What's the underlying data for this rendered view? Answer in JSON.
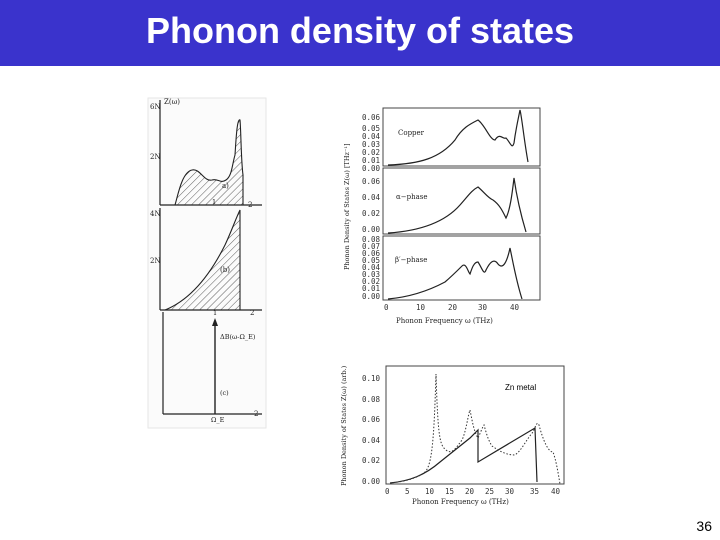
{
  "slide": {
    "title": "Phonon density of states",
    "page_number": "36"
  },
  "left_figure": {
    "panel_a": {
      "y_axis_label": "Z(ω)",
      "y_tick_top": "6N",
      "y_tick_mid": "2N",
      "panel_label": "a)",
      "x_tick_1": "1",
      "x_tick_2": "2"
    },
    "panel_b": {
      "y_tick_top": "4N",
      "y_tick_mid": "2N",
      "panel_label": "(b)",
      "x_tick_1": "1",
      "x_tick_2": "2"
    },
    "panel_c": {
      "label_top": "ΔB(ω-Ω_E)",
      "panel_label": "(c)",
      "x_tick_e": "Ω_E",
      "x_tick_2": "2"
    }
  },
  "right_top_figure": {
    "y_axis_label": "Phonon Density of States Z(ω) [THz⁻¹]",
    "x_axis_label": "Phonon Frequency ω (THz)",
    "x_ticks": [
      "0",
      "10",
      "20",
      "30",
      "40"
    ],
    "panels": [
      {
        "name": "Copper",
        "y_ticks": [
          "0.06",
          "0.05",
          "0.04",
          "0.03",
          "0.02",
          "0.01",
          "0.00"
        ]
      },
      {
        "name": "α−phase",
        "y_ticks": [
          "0.06",
          "0.04",
          "0.02",
          "0.00"
        ]
      },
      {
        "name": "β′−phase",
        "y_ticks": [
          "0.08",
          "0.07",
          "0.06",
          "0.05",
          "0.04",
          "0.03",
          "0.02",
          "0.01",
          "0.00"
        ]
      }
    ]
  },
  "right_bottom_figure": {
    "annotation": "Zn metal",
    "y_axis_label": "Phonon Density of States Z(ω) (arb.)",
    "x_axis_label": "Phonon Frequency ω (THz)",
    "y_ticks": [
      "0.10",
      "0.08",
      "0.06",
      "0.04",
      "0.02",
      "0.00"
    ],
    "x_ticks": [
      "0",
      "5",
      "10",
      "15",
      "20",
      "25",
      "30",
      "35",
      "40"
    ]
  }
}
